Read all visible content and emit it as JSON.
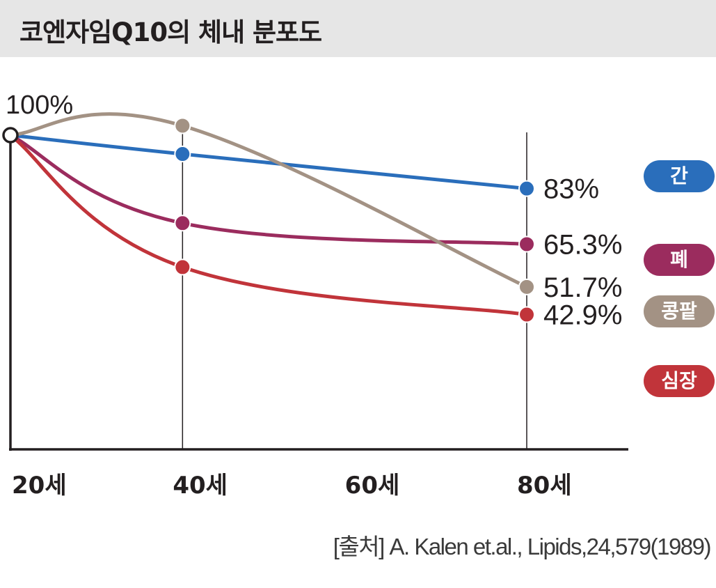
{
  "title": "코엔자임Q10의 체내 분포도",
  "source": "[출처] A. Kalen et.al., Lipids,24,579(1989)",
  "chart_data": {
    "type": "line",
    "x": [
      20,
      40,
      80
    ],
    "x_ticks": [
      20,
      40,
      60,
      80
    ],
    "x_tick_labels": [
      "20세",
      "40세",
      "60세",
      "80세"
    ],
    "ylim": [
      0,
      100
    ],
    "start_label": "100%",
    "grid": false,
    "legend_position": "right",
    "series": [
      {
        "name": "간",
        "values": [
          100,
          94,
          83
        ],
        "end_label": "83%",
        "color": "#2a6ebb"
      },
      {
        "name": "폐",
        "values": [
          100,
          72,
          65.3
        ],
        "end_label": "65.3%",
        "color": "#9b2c5e"
      },
      {
        "name": "콩팥",
        "values": [
          100,
          103,
          51.7
        ],
        "end_label": "51.7%",
        "color": "#a39284"
      },
      {
        "name": "심장",
        "values": [
          100,
          58,
          42.9
        ],
        "end_label": "42.9%",
        "color": "#c1343a"
      }
    ]
  }
}
